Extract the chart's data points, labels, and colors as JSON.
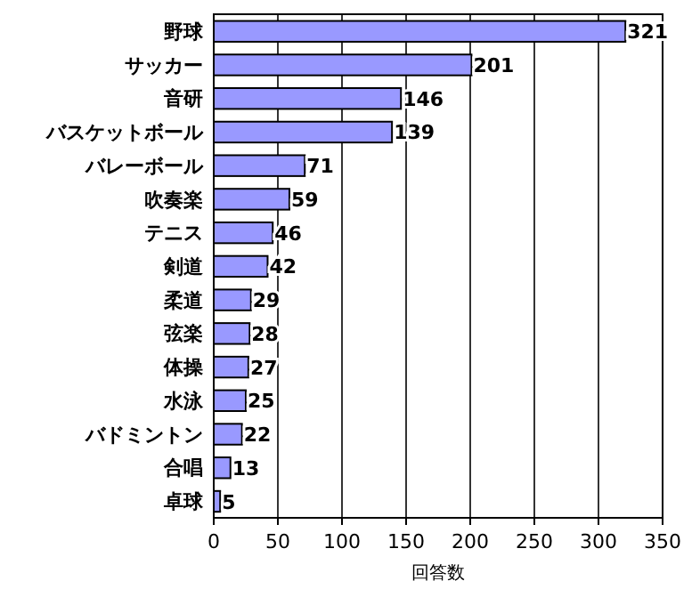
{
  "chart_data": {
    "type": "bar",
    "orientation": "horizontal",
    "categories": [
      "野球",
      "サッカー",
      "音研",
      "バスケットボール",
      "バレーボール",
      "吹奏楽",
      "テニス",
      "剣道",
      "柔道",
      "弦楽",
      "体操",
      "水泳",
      "バドミントン",
      "合唱",
      "卓球"
    ],
    "values": [
      321,
      201,
      146,
      139,
      71,
      59,
      46,
      42,
      29,
      28,
      27,
      25,
      22,
      13,
      5
    ],
    "color": "#9999ff",
    "data_labels": true,
    "xlabel": "回答数",
    "xlim": [
      0,
      350
    ],
    "xticks": [
      0,
      50,
      100,
      150,
      200,
      250,
      300,
      350
    ],
    "grid": "x"
  }
}
